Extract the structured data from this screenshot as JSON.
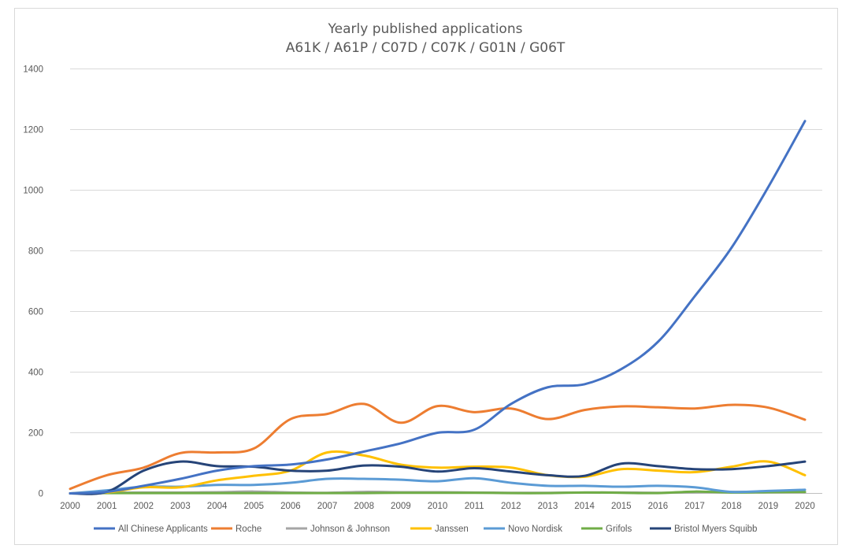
{
  "chart_data": {
    "type": "line",
    "title": "Yearly published applications",
    "subtitle": "A61K / A61P / C07D / C07K / G01N / G06T",
    "xlabel": "",
    "ylabel": "",
    "ylim": [
      0,
      1400
    ],
    "yticks": [
      0,
      200,
      400,
      600,
      800,
      1000,
      1200,
      1400
    ],
    "grid": true,
    "legend_position": "bottom",
    "x": [
      "2000",
      "2001",
      "2002",
      "2003",
      "2004",
      "2005",
      "2006",
      "2007",
      "2008",
      "2009",
      "2010",
      "2011",
      "2012",
      "2013",
      "2014",
      "2015",
      "2016",
      "2017",
      "2018",
      "2019",
      "2020"
    ],
    "series": [
      {
        "name": "All Chinese Applicants",
        "color": "#4472c4",
        "values": [
          0,
          5,
          25,
          48,
          75,
          90,
          95,
          112,
          138,
          165,
          200,
          210,
          295,
          350,
          360,
          410,
          500,
          650,
          810,
          1010,
          1228
        ]
      },
      {
        "name": "Roche",
        "color": "#ed7d31",
        "values": [
          15,
          60,
          85,
          133,
          135,
          148,
          245,
          262,
          295,
          233,
          288,
          268,
          280,
          245,
          275,
          287,
          284,
          280,
          292,
          283,
          243
        ]
      },
      {
        "name": "Johnson & Johnson",
        "color": "#a5a5a5",
        "values": [
          0,
          2,
          3,
          3,
          4,
          6,
          3,
          2,
          5,
          4,
          4,
          3,
          2,
          2,
          3,
          3,
          2,
          4,
          5,
          5,
          4
        ]
      },
      {
        "name": "Janssen",
        "color": "#ffc000",
        "values": [
          0,
          3,
          20,
          20,
          43,
          58,
          75,
          135,
          125,
          95,
          85,
          88,
          85,
          60,
          55,
          80,
          75,
          70,
          88,
          105,
          60
        ]
      },
      {
        "name": "Novo Nordisk",
        "color": "#5b9bd5",
        "values": [
          0,
          10,
          22,
          22,
          28,
          28,
          35,
          48,
          48,
          45,
          40,
          50,
          35,
          25,
          25,
          22,
          25,
          20,
          5,
          8,
          12
        ]
      },
      {
        "name": "Grifols",
        "color": "#70ad47",
        "values": [
          0,
          1,
          1,
          1,
          1,
          1,
          1,
          1,
          1,
          2,
          2,
          2,
          1,
          1,
          3,
          2,
          1,
          6,
          3,
          4,
          5
        ]
      },
      {
        "name": "Bristol Myers Squibb",
        "color": "#264478",
        "values": [
          0,
          5,
          75,
          105,
          90,
          88,
          75,
          75,
          92,
          88,
          72,
          83,
          72,
          60,
          58,
          98,
          90,
          80,
          80,
          90,
          105
        ]
      }
    ]
  }
}
